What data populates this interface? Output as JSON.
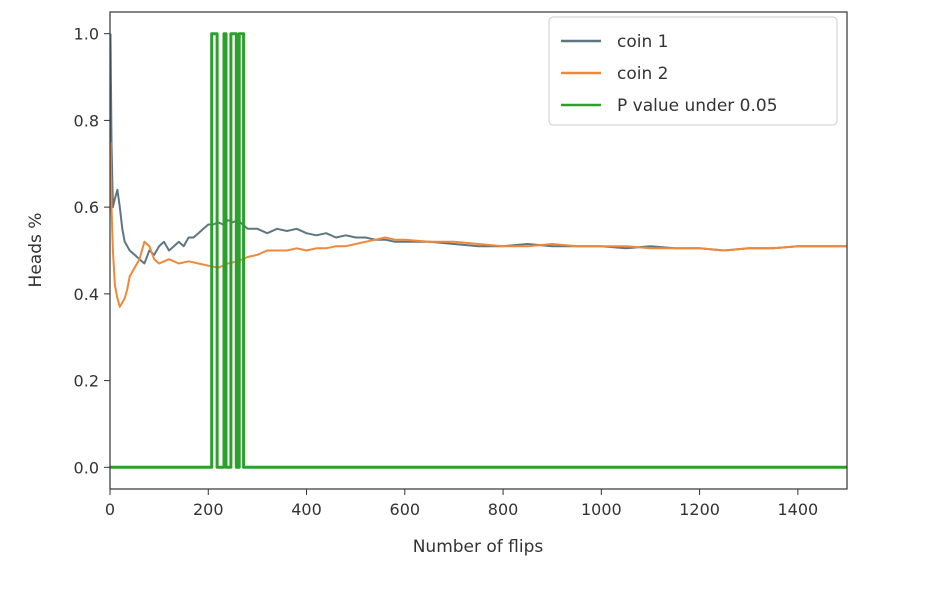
{
  "chart_data": {
    "type": "line",
    "title": "",
    "xlabel": "Number of flips",
    "ylabel": "Heads %",
    "xlim": [
      0,
      1500
    ],
    "ylim": [
      -0.05,
      1.05
    ],
    "xticks": [
      0,
      200,
      400,
      600,
      800,
      1000,
      1200,
      1400
    ],
    "yticks": [
      0.0,
      0.2,
      0.4,
      0.6,
      0.8,
      1.0
    ],
    "xtick_labels": [
      "0",
      "200",
      "400",
      "600",
      "800",
      "1000",
      "1200",
      "1400"
    ],
    "ytick_labels": [
      "0.0",
      "0.2",
      "0.4",
      "0.6",
      "0.8",
      "1.0"
    ],
    "grid": false,
    "legend_position": "top-right",
    "series": [
      {
        "name": "coin 1",
        "color": "#5f7682",
        "x": [
          1,
          3,
          6,
          10,
          15,
          20,
          25,
          30,
          40,
          50,
          60,
          70,
          80,
          90,
          100,
          110,
          120,
          130,
          140,
          150,
          160,
          170,
          180,
          190,
          200,
          210,
          220,
          230,
          240,
          250,
          260,
          270,
          280,
          300,
          320,
          340,
          360,
          380,
          400,
          420,
          440,
          460,
          480,
          500,
          520,
          540,
          560,
          580,
          600,
          650,
          700,
          750,
          800,
          850,
          900,
          950,
          1000,
          1050,
          1100,
          1150,
          1200,
          1250,
          1300,
          1350,
          1400,
          1450,
          1500
        ],
        "y": [
          1.0,
          0.75,
          0.6,
          0.62,
          0.64,
          0.6,
          0.55,
          0.52,
          0.5,
          0.49,
          0.48,
          0.47,
          0.5,
          0.49,
          0.51,
          0.52,
          0.5,
          0.51,
          0.52,
          0.51,
          0.53,
          0.53,
          0.54,
          0.55,
          0.56,
          0.56,
          0.565,
          0.56,
          0.57,
          0.565,
          0.57,
          0.56,
          0.55,
          0.55,
          0.54,
          0.55,
          0.545,
          0.55,
          0.54,
          0.535,
          0.54,
          0.53,
          0.535,
          0.53,
          0.53,
          0.525,
          0.525,
          0.52,
          0.52,
          0.52,
          0.515,
          0.51,
          0.51,
          0.515,
          0.51,
          0.51,
          0.51,
          0.505,
          0.51,
          0.505,
          0.505,
          0.5,
          0.505,
          0.505,
          0.51,
          0.51,
          0.51
        ]
      },
      {
        "name": "coin 2",
        "color": "#f0883a",
        "x": [
          1,
          3,
          6,
          10,
          15,
          20,
          25,
          30,
          35,
          40,
          50,
          60,
          70,
          80,
          90,
          100,
          120,
          140,
          160,
          180,
          200,
          220,
          240,
          260,
          280,
          300,
          320,
          340,
          360,
          380,
          400,
          420,
          440,
          460,
          480,
          500,
          520,
          540,
          560,
          580,
          600,
          650,
          700,
          750,
          800,
          850,
          900,
          950,
          1000,
          1050,
          1100,
          1150,
          1200,
          1250,
          1300,
          1350,
          1400,
          1450,
          1500
        ],
        "y": [
          0.75,
          0.6,
          0.5,
          0.42,
          0.39,
          0.37,
          0.38,
          0.39,
          0.41,
          0.44,
          0.46,
          0.48,
          0.52,
          0.51,
          0.48,
          0.47,
          0.48,
          0.47,
          0.475,
          0.47,
          0.465,
          0.46,
          0.47,
          0.475,
          0.485,
          0.49,
          0.5,
          0.5,
          0.5,
          0.505,
          0.5,
          0.505,
          0.505,
          0.51,
          0.51,
          0.515,
          0.52,
          0.525,
          0.53,
          0.525,
          0.525,
          0.52,
          0.52,
          0.515,
          0.51,
          0.51,
          0.515,
          0.51,
          0.51,
          0.51,
          0.505,
          0.505,
          0.505,
          0.5,
          0.505,
          0.505,
          0.51,
          0.51,
          0.51
        ]
      },
      {
        "name": "P value under 0.05",
        "color": "#2ca02c",
        "x": [
          0,
          207,
          207,
          218,
          218,
          232,
          232,
          236,
          236,
          246,
          246,
          257,
          257,
          263,
          263,
          272,
          272,
          1500
        ],
        "y": [
          0,
          0,
          1,
          1,
          0,
          0,
          1,
          1,
          0,
          0,
          1,
          1,
          0,
          0,
          1,
          1,
          0,
          0
        ]
      }
    ]
  }
}
